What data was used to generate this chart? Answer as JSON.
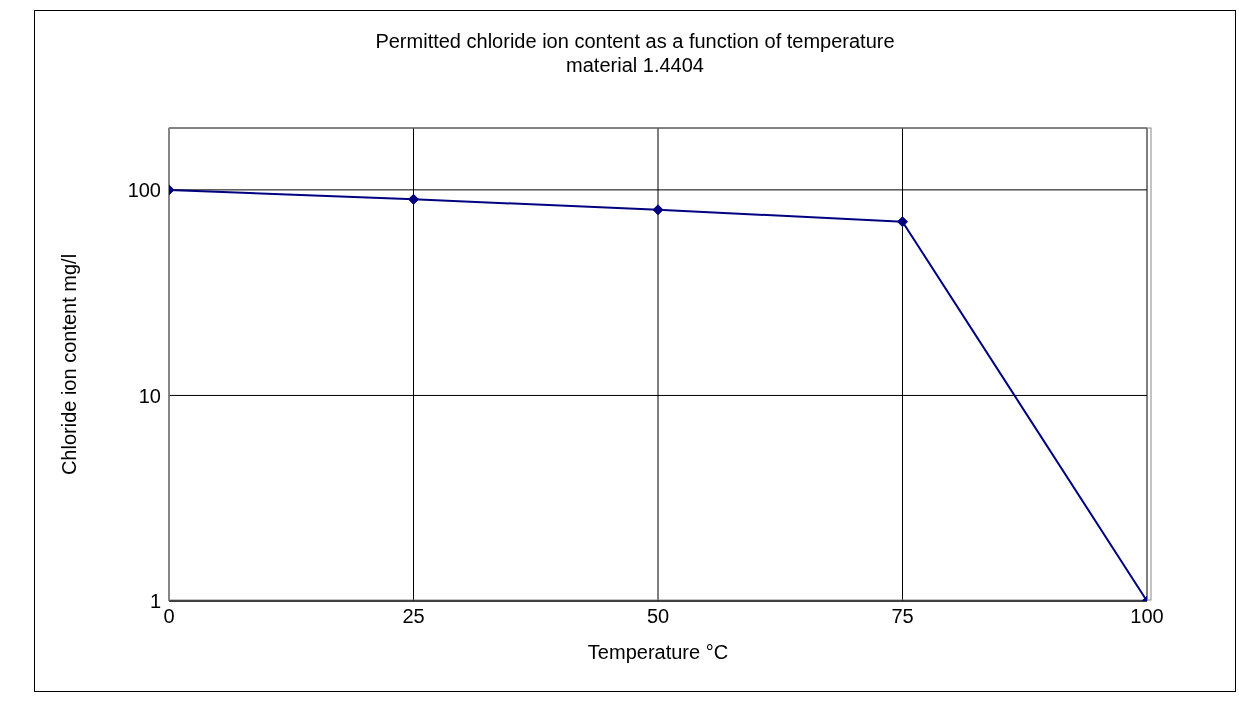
{
  "chart_data": {
    "type": "line",
    "title": "Permitted chloride ion content as a function of temperature",
    "subtitle": "material 1.4404",
    "xlabel": "Temperature °C",
    "ylabel": "Chloride ion content mg/l",
    "x": [
      0,
      25,
      50,
      75,
      100
    ],
    "series": [
      {
        "color": "#000080",
        "values": [
          100,
          90,
          80,
          70,
          1
        ]
      }
    ],
    "xlim": [
      0,
      100
    ],
    "xticks": [
      0,
      25,
      50,
      75,
      100
    ],
    "ylim": [
      1,
      200
    ],
    "yticks": [
      1,
      10,
      100
    ],
    "log": true,
    "grid": true,
    "legend": false,
    "marker": "diamond",
    "line_style": "solid"
  }
}
